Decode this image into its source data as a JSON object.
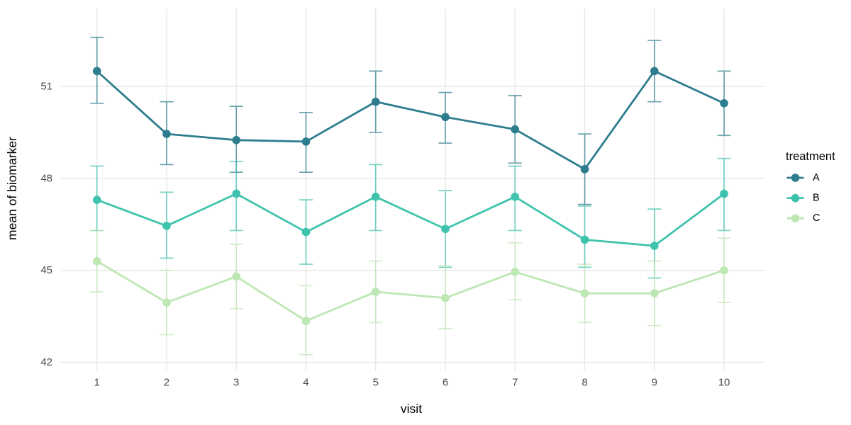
{
  "chart_data": {
    "type": "line",
    "title": "",
    "xlabel": "visit",
    "ylabel": "mean of biomarker",
    "legend_title": "treatment",
    "legend_position": "right",
    "grid": "major-only",
    "error_bars": true,
    "x": [
      1,
      2,
      3,
      4,
      5,
      6,
      7,
      8,
      9,
      10
    ],
    "x_ticks": [
      "1",
      "2",
      "3",
      "4",
      "5",
      "6",
      "7",
      "8",
      "9",
      "10"
    ],
    "y_ticks": [
      "42",
      "45",
      "48",
      "51"
    ],
    "xlim": [
      1,
      10
    ],
    "ylim": [
      41.8,
      53.2
    ],
    "series": [
      {
        "name": "A",
        "color": "#2d7d8e",
        "means": [
          51.5,
          49.45,
          49.25,
          49.2,
          50.5,
          50.0,
          49.6,
          48.3,
          51.5,
          50.45
        ],
        "lower": [
          50.45,
          48.45,
          48.2,
          48.2,
          49.5,
          49.15,
          48.5,
          47.15,
          50.5,
          49.4
        ],
        "upper": [
          52.6,
          50.5,
          50.35,
          50.15,
          51.5,
          50.8,
          50.7,
          49.45,
          52.5,
          51.5
        ]
      },
      {
        "name": "B",
        "color": "#3fc3ac",
        "means": [
          47.3,
          46.45,
          47.5,
          46.25,
          47.4,
          46.35,
          47.4,
          46.0,
          45.8,
          47.5
        ],
        "lower": [
          46.3,
          45.4,
          46.3,
          45.2,
          46.3,
          45.1,
          46.3,
          45.1,
          44.75,
          46.3
        ],
        "upper": [
          48.4,
          47.55,
          48.55,
          47.3,
          48.45,
          47.6,
          48.4,
          47.1,
          47.0,
          48.65
        ]
      },
      {
        "name": "C",
        "color": "#bde7b3",
        "means": [
          45.3,
          43.95,
          44.8,
          43.35,
          44.3,
          44.1,
          44.95,
          44.25,
          44.25,
          45.0
        ],
        "lower": [
          44.3,
          42.9,
          43.75,
          42.25,
          43.3,
          43.1,
          44.05,
          43.3,
          43.2,
          43.95
        ],
        "upper": [
          46.3,
          45.0,
          45.85,
          44.5,
          45.3,
          45.15,
          45.9,
          45.2,
          45.3,
          46.05
        ]
      }
    ]
  },
  "colors": {
    "background": "#ffffff",
    "grid": "#e7e7e7",
    "tick_label": "#4d4d4d",
    "axis_title": "#000000",
    "legend_text": "#000000"
  }
}
